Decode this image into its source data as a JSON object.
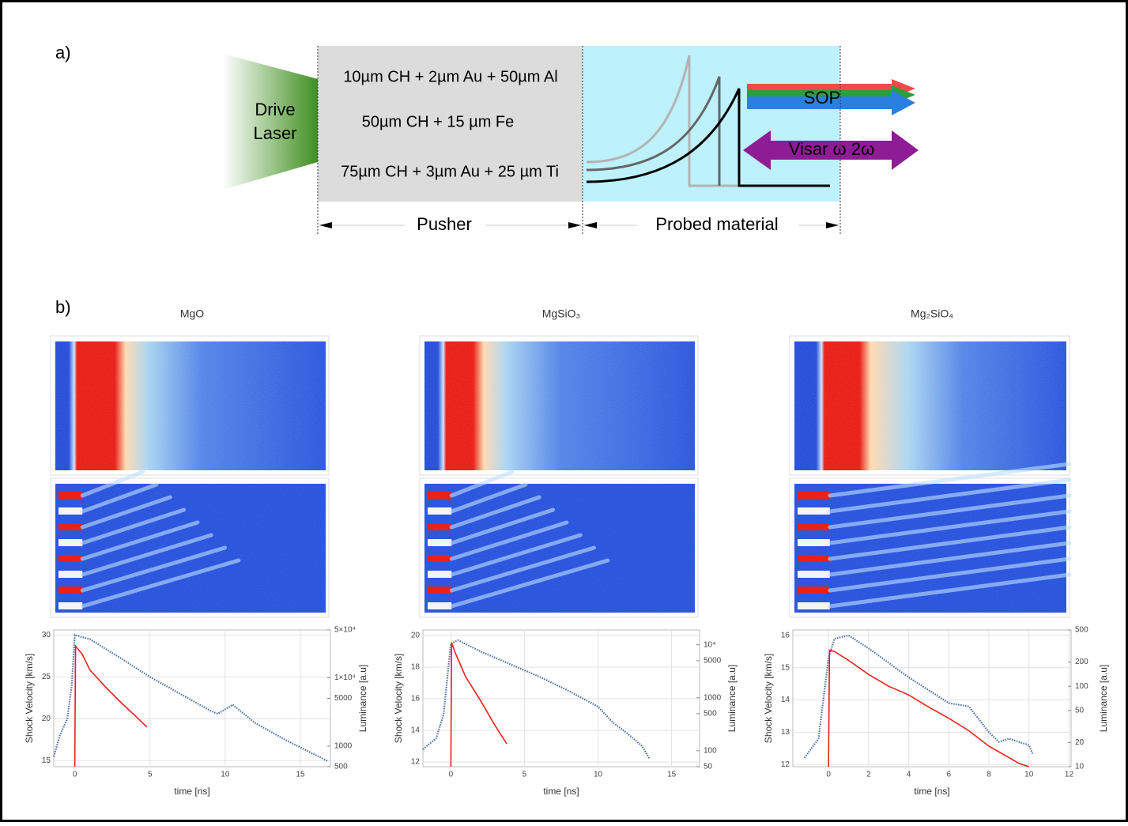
{
  "panel_a": {
    "label": "a)",
    "laser": [
      "Drive",
      "Laser"
    ],
    "layers": [
      "10µm CH + 2µm Au + 50µm Al",
      "50µm CH + 15 µm Fe",
      "75µm CH + 3µm Au + 25 µm Ti"
    ],
    "pusher": "Pusher",
    "probed": "Probed material",
    "sop": "SOP",
    "visar": "Visar ω 2ω"
  },
  "panel_b": {
    "label": "b)"
  },
  "chart_data": [
    {
      "type": "line",
      "title": "MgO",
      "xlabel": "time [ns]",
      "ylabel": "Shock Velocity [km/s]",
      "y2label": "Luminance [a.u]",
      "xlim": [
        -1.4,
        17
      ],
      "xticks": [
        0,
        5,
        10,
        15
      ],
      "ylim": [
        14.3,
        30.6
      ],
      "yticks": [
        15,
        20,
        25,
        30
      ],
      "y2lim": [
        500,
        50000
      ],
      "y2log": true,
      "grid": true,
      "y2ticks": [
        500,
        1000,
        5000,
        {
          "value": 10000,
          "label": "1×10⁴"
        },
        {
          "value": 50000,
          "label": "5×10⁴"
        }
      ],
      "series": [
        {
          "color": "#4a6fa5",
          "x": [
            -1.4,
            -1,
            -0.5,
            -0.2,
            0,
            1,
            3,
            5,
            7,
            9,
            9.5,
            10.5,
            12,
            14,
            16,
            16.8
          ],
          "values": [
            15.5,
            18,
            20,
            24,
            30,
            29.5,
            27.3,
            25,
            23,
            21,
            20.6,
            21.7,
            19.5,
            17.5,
            15.7,
            15
          ]
        },
        {
          "color": "#e8221c",
          "axis": "y2",
          "x": [
            0,
            0.05,
            0.5,
            1,
            2,
            3,
            4,
            4.8
          ],
          "values": [
            500,
            29000,
            22000,
            13000,
            7500,
            4500,
            2800,
            1900
          ]
        }
      ]
    },
    {
      "type": "line",
      "title": "MgSiO₃",
      "xlabel": "time [ns]",
      "ylabel": "Shock Velocity [km/s]",
      "y2label": "Luminance [a.u]",
      "xlim": [
        -1.9,
        16.9
      ],
      "xticks": [
        0,
        5,
        10,
        15
      ],
      "ylim": [
        11.7,
        20.35
      ],
      "yticks": [
        12,
        14,
        16,
        18,
        20
      ],
      "y2lim": [
        50,
        19000
      ],
      "y2log": true,
      "grid": true,
      "y2ticks": [
        50,
        100,
        500,
        1000,
        5000,
        {
          "value": 10000,
          "label": "10⁴"
        }
      ],
      "series": [
        {
          "color": "#4a6fa5",
          "x": [
            -1.9,
            -1,
            -0.5,
            0,
            0.5,
            2,
            4,
            6,
            8,
            10,
            11,
            12,
            13,
            13.5
          ],
          "values": [
            12.8,
            13.5,
            15,
            19.5,
            19.7,
            19,
            18.2,
            17.4,
            16.5,
            15.5,
            14.5,
            13.8,
            13,
            12.2
          ]
        },
        {
          "color": "#e8221c",
          "axis": "y2",
          "x": [
            0,
            0.05,
            0.3,
            1,
            2,
            3,
            3.8
          ],
          "values": [
            50,
            11000,
            7000,
            2500,
            900,
            300,
            135
          ]
        }
      ]
    },
    {
      "type": "line",
      "title": "Mg₂SiO₄",
      "xlabel": "time [ns]",
      "ylabel": "Shock Velocity [km/s]",
      "y2label": "Luminance [a.u]",
      "xlim": [
        -1.78,
        12.1
      ],
      "xticks": [
        0,
        2,
        4,
        6,
        8,
        10,
        12
      ],
      "ylim": [
        11.93,
        16.17
      ],
      "yticks": [
        12,
        13,
        14,
        15,
        16
      ],
      "y2lim": [
        10,
        500
      ],
      "y2log": true,
      "grid": true,
      "y2ticks": [
        10,
        20,
        50,
        100,
        200,
        500
      ],
      "series": [
        {
          "color": "#4a6fa5",
          "x": [
            -1.2,
            -0.5,
            0,
            0.3,
            1,
            2,
            4,
            6,
            7,
            8,
            8.5,
            9,
            10,
            10.2
          ],
          "values": [
            12.2,
            12.8,
            15.3,
            15.9,
            16,
            15.6,
            14.7,
            13.9,
            13.8,
            13,
            12.7,
            12.8,
            12.6,
            12.3
          ]
        },
        {
          "color": "#e8221c",
          "axis": "y2",
          "x": [
            0,
            0.05,
            0.3,
            1,
            2,
            3,
            4,
            5,
            6,
            7,
            8,
            9,
            9.5,
            10
          ],
          "values": [
            10,
            280,
            270,
            210,
            140,
            100,
            78,
            55,
            40,
            28,
            18,
            13,
            11,
            10
          ]
        }
      ]
    }
  ]
}
